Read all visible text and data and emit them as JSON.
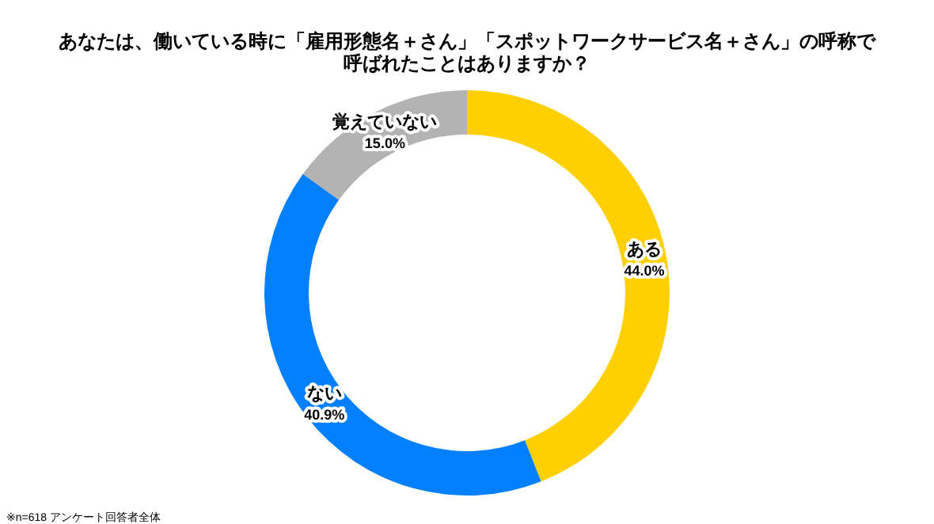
{
  "chart_data": {
    "type": "donut",
    "title": "あなたは、働いている時に「雇用形態名＋さん」「スポットワークサービス名＋さん」の呼称で呼ばれたことはありますか？",
    "categories": [
      "ある",
      "ない",
      "覚えていない"
    ],
    "values": [
      44.0,
      40.9,
      15.0
    ],
    "colors": [
      "#ffd000",
      "#0080ff",
      "#b3b3b3"
    ],
    "value_labels": [
      "44.0%",
      "40.9%",
      "15.0%"
    ],
    "legend": false,
    "annotations": [
      "※n=618 アンケート回答者全体"
    ]
  }
}
